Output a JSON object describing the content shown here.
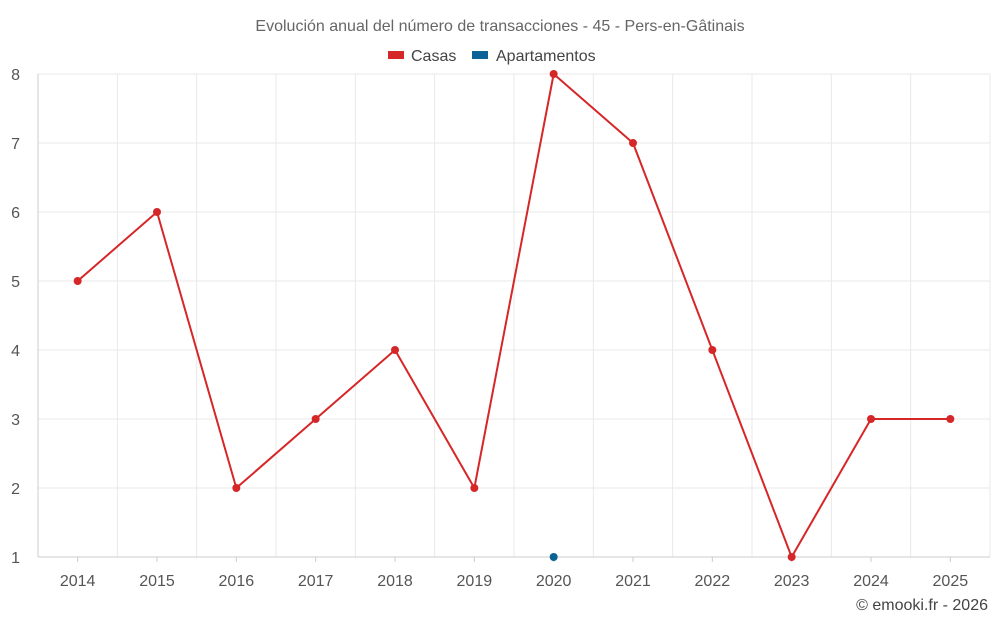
{
  "chart_data": {
    "type": "line",
    "title": "Evolución anual del número de transacciones - 45 - Pers-en-Gâtinais",
    "categories": [
      "2014",
      "2015",
      "2016",
      "2017",
      "2018",
      "2019",
      "2020",
      "2021",
      "2022",
      "2023",
      "2024",
      "2025"
    ],
    "series": [
      {
        "name": "Casas",
        "color": "#d62728",
        "values": [
          5,
          6,
          2,
          3,
          4,
          2,
          8,
          7,
          4,
          1,
          3,
          3
        ]
      },
      {
        "name": "Apartamentos",
        "color": "#0b6295",
        "values": [
          null,
          null,
          null,
          null,
          null,
          null,
          1,
          null,
          null,
          null,
          null,
          null
        ]
      }
    ],
    "ylim": [
      1,
      8
    ],
    "yticks": [
      "1",
      "2",
      "3",
      "4",
      "5",
      "6",
      "7",
      "8"
    ],
    "xlabel": "",
    "ylabel": "",
    "grid": true,
    "legend": "top-center"
  },
  "credit": "© emooki.fr - 2026"
}
